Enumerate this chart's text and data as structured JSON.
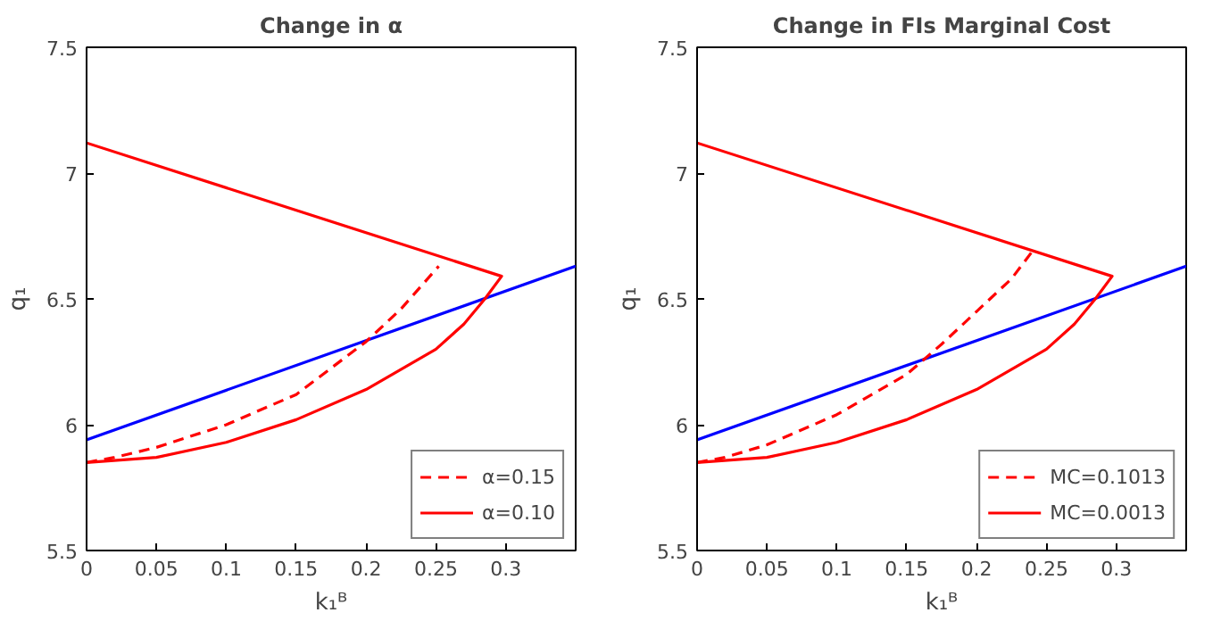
{
  "chart_data": [
    {
      "type": "line",
      "title": "Change in α",
      "xlabel": "k₁ᴮ",
      "ylabel": "q₁",
      "xlim": [
        0,
        0.35
      ],
      "ylim": [
        5.5,
        7.5
      ],
      "xticks": [
        0,
        0.05,
        0.1,
        0.15,
        0.2,
        0.25,
        0.3
      ],
      "yticks": [
        5.5,
        6,
        6.5,
        7,
        7.5
      ],
      "grid": false,
      "legend": "bottom right",
      "series": [
        {
          "color": "#0000ff",
          "line_style": "solid",
          "x": [
            0,
            0.35
          ],
          "values": [
            5.94,
            6.63
          ]
        },
        {
          "name": "α=0.15",
          "color": "#ff0000",
          "line_style": "dashed",
          "x": [
            0,
            0.02,
            0.05,
            0.1,
            0.15,
            0.2,
            0.225,
            0.252
          ],
          "values": [
            5.85,
            5.87,
            5.91,
            6.0,
            6.12,
            6.33,
            6.46,
            6.63
          ]
        },
        {
          "name": "α=0.10",
          "color": "#ff0000",
          "line_style": "solid",
          "x": [
            0,
            0.05,
            0.1,
            0.15,
            0.2,
            0.25,
            0.27,
            0.285,
            0.297,
            0
          ],
          "values": [
            5.85,
            5.87,
            5.93,
            6.02,
            6.14,
            6.3,
            6.4,
            6.5,
            6.59,
            7.12
          ]
        }
      ]
    },
    {
      "type": "line",
      "title": "Change in FIs Marginal Cost",
      "xlabel": "k₁ᴮ",
      "ylabel": "q₁",
      "xlim": [
        0,
        0.35
      ],
      "ylim": [
        5.5,
        7.5
      ],
      "xticks": [
        0,
        0.05,
        0.1,
        0.15,
        0.2,
        0.25,
        0.3
      ],
      "yticks": [
        5.5,
        6,
        6.5,
        7,
        7.5
      ],
      "grid": false,
      "legend": "bottom right",
      "series": [
        {
          "color": "#0000ff",
          "line_style": "solid",
          "x": [
            0,
            0.35
          ],
          "values": [
            5.94,
            6.63
          ]
        },
        {
          "name": "MC=0.1013",
          "color": "#ff0000",
          "line_style": "dashed",
          "x": [
            0,
            0.02,
            0.05,
            0.1,
            0.15,
            0.175,
            0.2,
            0.225,
            0.24
          ],
          "values": [
            5.85,
            5.87,
            5.92,
            6.04,
            6.2,
            6.32,
            6.45,
            6.58,
            6.69
          ]
        },
        {
          "name": "MC=0.0013",
          "color": "#ff0000",
          "line_style": "solid",
          "x": [
            0,
            0.05,
            0.1,
            0.15,
            0.2,
            0.25,
            0.27,
            0.285,
            0.297,
            0
          ],
          "values": [
            5.85,
            5.87,
            5.93,
            6.02,
            6.14,
            6.3,
            6.4,
            6.5,
            6.59,
            7.12
          ]
        }
      ]
    }
  ]
}
